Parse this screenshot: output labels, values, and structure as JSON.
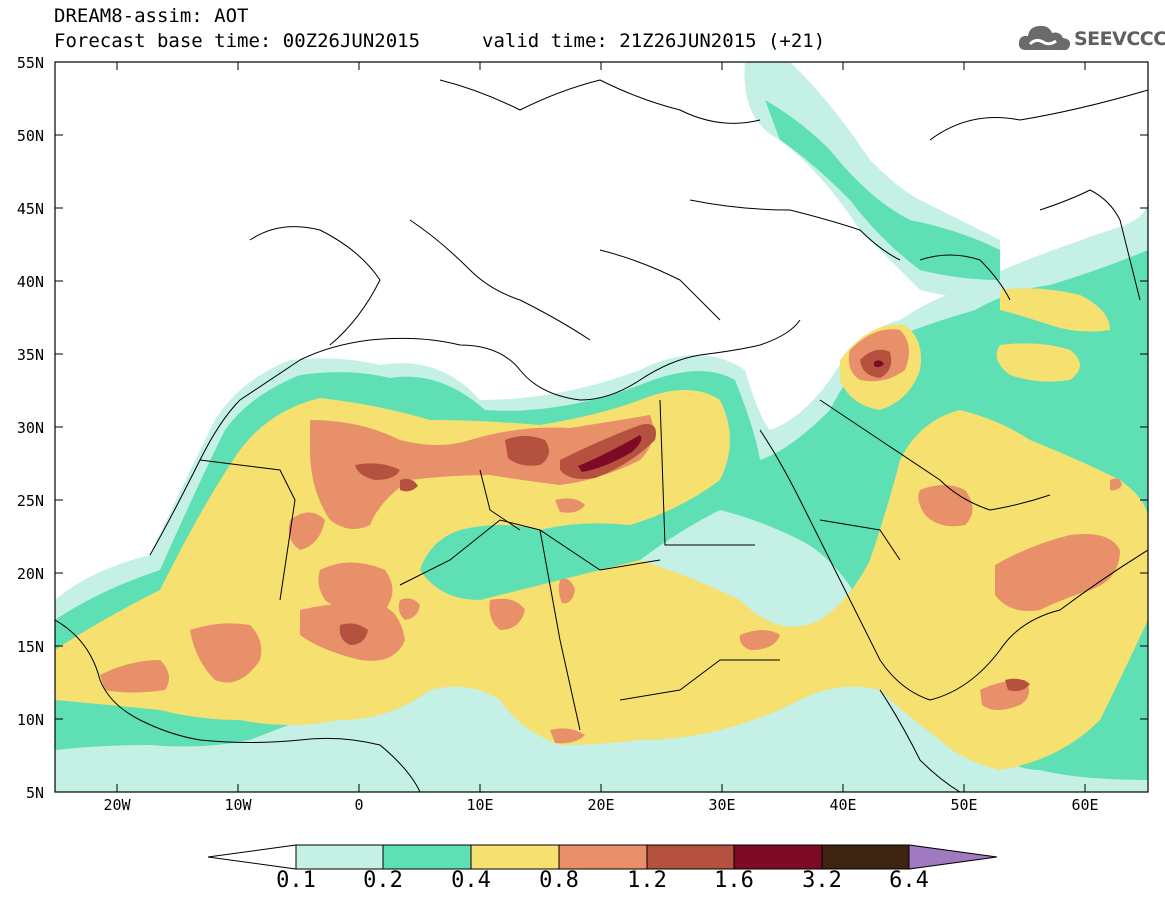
{
  "header": {
    "title_line1": "DREAM8-assim: AOT",
    "title_line2": "Forecast base time: 00Z26JUN2015",
    "valid_time": "valid time: 21Z26JUN2015 (+21)",
    "logo_text": "SEEVCCC"
  },
  "map": {
    "lat_labels": [
      "55N",
      "50N",
      "45N",
      "40N",
      "35N",
      "30N",
      "25N",
      "20N",
      "15N",
      "10N",
      "5N"
    ],
    "lon_labels": [
      "20W",
      "10W",
      "0",
      "10E",
      "20E",
      "30E",
      "40E",
      "50E",
      "60E"
    ]
  },
  "colorbar": {
    "labels": [
      "0.1",
      "0.2",
      "0.4",
      "0.8",
      "1.2",
      "1.6",
      "3.2",
      "6.4"
    ],
    "colors": [
      "#c4f0e6",
      "#5fe0b4",
      "#f5e070",
      "#e8906a",
      "#b5513f",
      "#7d0a26",
      "#3d2410",
      "#a07ac0"
    ]
  },
  "colors": {
    "low": "#c4f0e6",
    "mid": "#5fe0b4",
    "yellow": "#f5e070",
    "orange": "#e8906a",
    "red": "#b5513f",
    "maroon": "#7d0a26"
  }
}
